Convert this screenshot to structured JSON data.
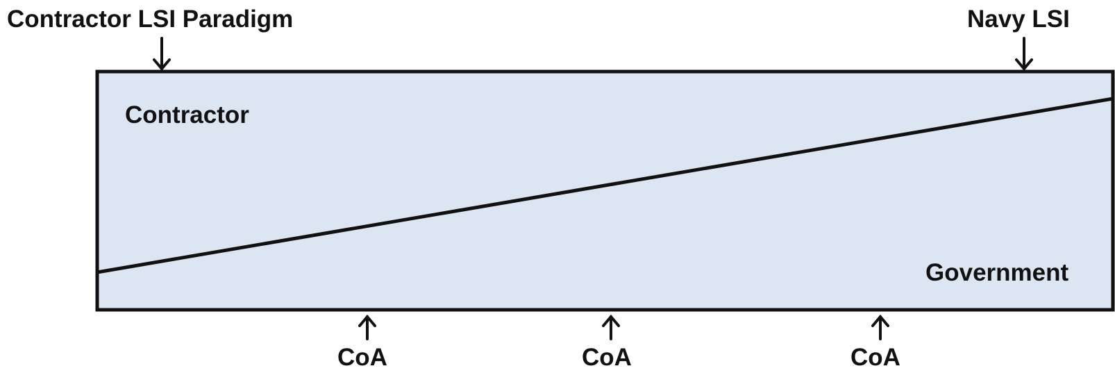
{
  "diagram": {
    "top_left_label": "Contractor LSI Paradigm",
    "top_right_label": "Navy LSI",
    "region_upper_label": "Contractor",
    "region_lower_label": "Government",
    "bottom_labels": [
      "CoA",
      "CoA",
      "CoA"
    ],
    "colors": {
      "box_fill": "#dce6f2",
      "stroke": "#111111",
      "text": "#111111"
    }
  }
}
